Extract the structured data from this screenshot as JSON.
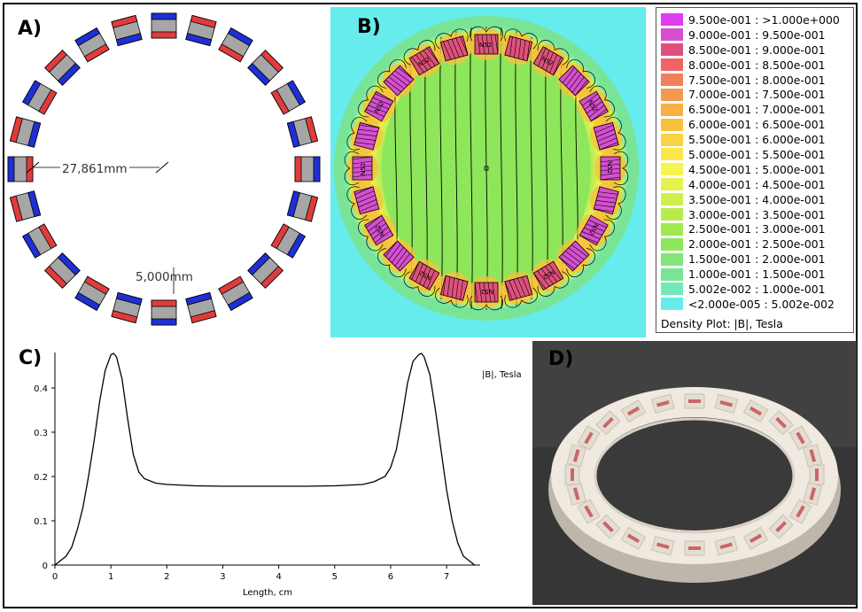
{
  "panels": {
    "a": {
      "label": "A)",
      "dim_diameter": "27,861mm",
      "dim_gap": "5,000mm"
    },
    "b": {
      "label": "B)",
      "magnet_tag": "N52"
    },
    "c": {
      "label": "C)"
    },
    "d": {
      "label": "D)"
    }
  },
  "legend": {
    "title": "Density Plot: |B|, Tesla",
    "entries": [
      {
        "label": "9.500e-001 : >1.000e+000",
        "color": "#e23cf0"
      },
      {
        "label": "9.000e-001 : 9.500e-001",
        "color": "#d64fd0"
      },
      {
        "label": "8.500e-001 : 9.000e-001",
        "color": "#e0507c"
      },
      {
        "label": "8.000e-001 : 8.500e-001",
        "color": "#ef6463"
      },
      {
        "label": "7.500e-001 : 8.000e-001",
        "color": "#f07f5c"
      },
      {
        "label": "7.000e-001 : 7.500e-001",
        "color": "#f29a4e"
      },
      {
        "label": "6.500e-001 : 7.000e-001",
        "color": "#f6b044"
      },
      {
        "label": "6.000e-001 : 6.500e-001",
        "color": "#f8c13d"
      },
      {
        "label": "5.500e-001 : 6.000e-001",
        "color": "#f8d343"
      },
      {
        "label": "5.000e-001 : 5.500e-001",
        "color": "#fbe74a"
      },
      {
        "label": "4.500e-001 : 5.000e-001",
        "color": "#f6f44f"
      },
      {
        "label": "4.000e-001 : 4.500e-001",
        "color": "#e6f24d"
      },
      {
        "label": "3.500e-001 : 4.000e-001",
        "color": "#cff04c"
      },
      {
        "label": "3.000e-001 : 3.500e-001",
        "color": "#b8ec4c"
      },
      {
        "label": "2.500e-001 : 3.000e-001",
        "color": "#a2e84f"
      },
      {
        "label": "2.000e-001 : 2.500e-001",
        "color": "#8ee65a"
      },
      {
        "label": "1.500e-001 : 2.000e-001",
        "color": "#82e479"
      },
      {
        "label": "1.000e-001 : 1.500e-001",
        "color": "#79e496"
      },
      {
        "label": "5.002e-002 : 1.000e-001",
        "color": "#72e8bb"
      },
      {
        "label": "<2.000e-005 : 5.002e-002",
        "color": "#66ecec"
      }
    ]
  },
  "chart_data": {
    "type": "line",
    "title": "",
    "xlabel": "Length, cm",
    "ylabel": "",
    "series_label": "|B|, Tesla",
    "xlim": [
      0,
      7.6
    ],
    "ylim": [
      0,
      0.48
    ],
    "xticks": [
      0,
      1,
      2,
      3,
      4,
      5,
      6,
      7
    ],
    "yticks": [
      0,
      0.1,
      0.2,
      0.3,
      0.4
    ],
    "series": [
      {
        "x": [
          0,
          0.1,
          0.2,
          0.3,
          0.4,
          0.5,
          0.6,
          0.7,
          0.8,
          0.9,
          1.0,
          1.05,
          1.1,
          1.2,
          1.3,
          1.4,
          1.5,
          1.6,
          1.8,
          2.0,
          2.5,
          3.0,
          3.5,
          4.0,
          4.5,
          5.0,
          5.5,
          5.7,
          5.9,
          6.0,
          6.1,
          6.2,
          6.3,
          6.4,
          6.5,
          6.55,
          6.6,
          6.7,
          6.8,
          6.9,
          7.0,
          7.1,
          7.2,
          7.3,
          7.4,
          7.5
        ],
        "y": [
          0.0,
          0.01,
          0.02,
          0.04,
          0.08,
          0.13,
          0.2,
          0.28,
          0.37,
          0.44,
          0.475,
          0.478,
          0.47,
          0.42,
          0.33,
          0.25,
          0.21,
          0.195,
          0.185,
          0.182,
          0.179,
          0.178,
          0.178,
          0.178,
          0.178,
          0.179,
          0.182,
          0.188,
          0.2,
          0.22,
          0.26,
          0.33,
          0.41,
          0.46,
          0.475,
          0.478,
          0.47,
          0.43,
          0.35,
          0.26,
          0.17,
          0.1,
          0.05,
          0.02,
          0.01,
          0.0
        ]
      }
    ]
  }
}
